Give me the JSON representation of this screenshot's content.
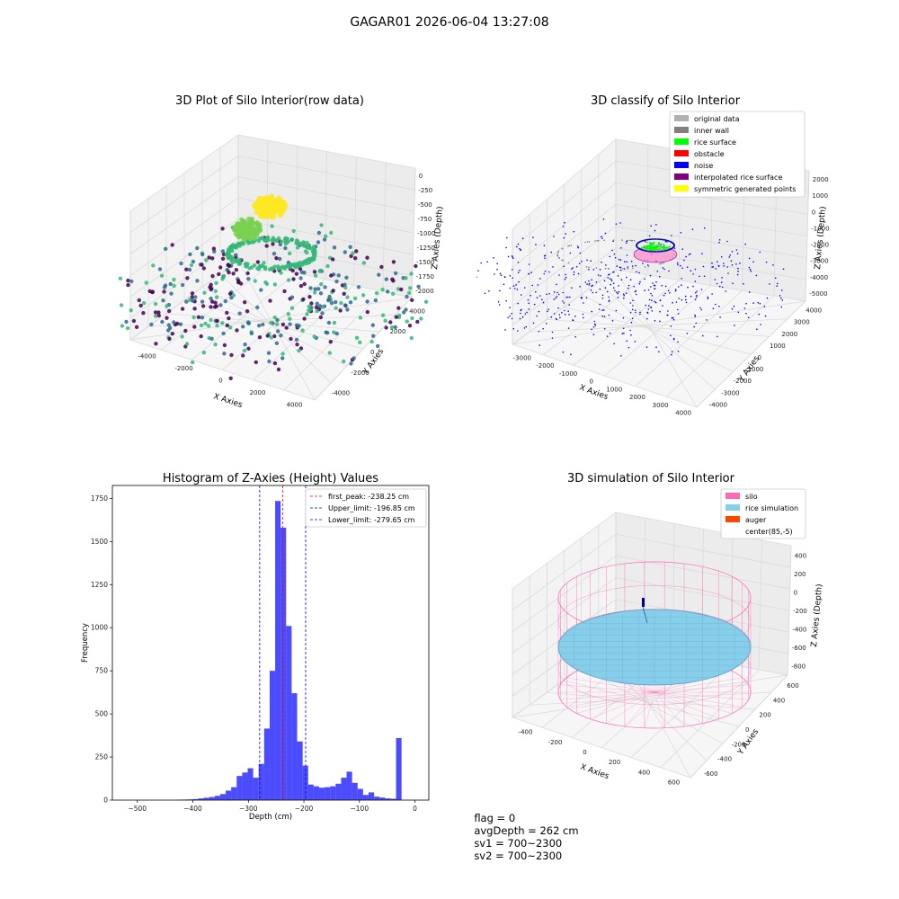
{
  "figure_title": "GAGAR01 2026-06-04 13:27:08",
  "footer": {
    "flag": "flag = 0",
    "avg_depth": "avgDepth = 262 cm",
    "sv1": "sv1 = 700~2300",
    "sv2": "sv2 = 700~2300"
  },
  "chart_data": [
    {
      "id": "raw",
      "type": "scatter",
      "title": "3D Plot of Silo Interior(row data)",
      "xlabel": "X Axies",
      "ylabel": "Y Axies",
      "zlabel": "Z Axies (Depth)",
      "x_ticks": [
        "-4000",
        "-2000",
        "0",
        "2000",
        "4000"
      ],
      "y_ticks": [
        "-4000",
        "-2000",
        "0",
        "2000",
        "4000"
      ],
      "z_ticks": [
        "-2000",
        "-1750",
        "-1500",
        "-1250",
        "-1000",
        "-750",
        "-500",
        "-250",
        "0"
      ],
      "colormap": [
        "#440154",
        "#31688e",
        "#35b779",
        "#fde725"
      ]
    },
    {
      "id": "classify",
      "type": "scatter",
      "title": "3D classify of Silo Interior",
      "xlabel": "X Axies",
      "ylabel": "Y Axies",
      "zlabel": "Z Axies (Depth)",
      "x_ticks": [
        "-3000",
        "-2000",
        "-1000",
        "0",
        "1000",
        "2000",
        "3000",
        "4000"
      ],
      "y_ticks": [
        "-4000",
        "-3000",
        "-2000",
        "-1000",
        "0",
        "1000",
        "2000",
        "3000",
        "4000"
      ],
      "z_ticks": [
        "-5000",
        "-4000",
        "-3000",
        "-2000",
        "-1000",
        "0",
        "1000",
        "2000"
      ],
      "legend": [
        {
          "label": "original data",
          "color": "#b0b0b0"
        },
        {
          "label": "inner wall",
          "color": "#808080"
        },
        {
          "label": "rice surface",
          "color": "#00ff00"
        },
        {
          "label": "obstacle",
          "color": "#ff0000"
        },
        {
          "label": "noise",
          "color": "#0000ff"
        },
        {
          "label": "interpolated rice surface",
          "color": "#800080"
        },
        {
          "label": "symmetric generated points",
          "color": "#ffff00"
        }
      ],
      "legend_loc": "top-right"
    },
    {
      "id": "hist",
      "type": "bar",
      "title": "Histogram of Z-Axies (Height) Values",
      "xlabel": "Depth (cm)",
      "ylabel": "Frequency",
      "xlim": [
        -545,
        25
      ],
      "ylim": [
        0,
        1825
      ],
      "x_ticks": [
        -500,
        -400,
        -300,
        -200,
        -100,
        0
      ],
      "y_ticks": [
        0,
        250,
        500,
        750,
        1000,
        1250,
        1500,
        1750
      ],
      "bin_width": 9.9,
      "bin_start": -430,
      "counts": [
        2,
        3,
        4,
        6,
        10,
        14,
        18,
        25,
        35,
        55,
        75,
        140,
        160,
        185,
        130,
        210,
        415,
        750,
        1735,
        1580,
        1010,
        620,
        340,
        200,
        90,
        80,
        72,
        75,
        80,
        95,
        130,
        165,
        100,
        65,
        30,
        45,
        20,
        15,
        10,
        8,
        360
      ],
      "bar_color": "#0000ff",
      "vlines": [
        {
          "label": "first_peak: -238.25 cm",
          "x": -238.25,
          "color": "#ff0000"
        },
        {
          "label": "Upper_limit: -196.85 cm",
          "x": -196.85,
          "color": "#0000ff"
        },
        {
          "label": "Lower_limit: -279.65 cm",
          "x": -279.65,
          "color": "#0000ff"
        }
      ],
      "legend_loc": "top-right"
    },
    {
      "id": "sim",
      "type": "scatter",
      "title": "3D simulation of Silo Interior",
      "xlabel": "X Axies",
      "ylabel": "Y Axies",
      "zlabel": "Z Axies (Depth)",
      "x_ticks": [
        "-400",
        "-200",
        "0",
        "200",
        "400",
        "600"
      ],
      "y_ticks": [
        "-600",
        "-400",
        "-200",
        "0",
        "200",
        "400",
        "600"
      ],
      "z_ticks": [
        "-800",
        "-600",
        "-400",
        "-200",
        "0",
        "200",
        "400"
      ],
      "legend": [
        {
          "label": "silo",
          "color": "#ff69b4"
        },
        {
          "label": "rice simulation",
          "color": "#87ceeb"
        },
        {
          "label": "auger",
          "color": "#ff4500"
        },
        {
          "label": "center(85,-5)",
          "color": ""
        }
      ],
      "legend_loc": "top-right"
    }
  ]
}
